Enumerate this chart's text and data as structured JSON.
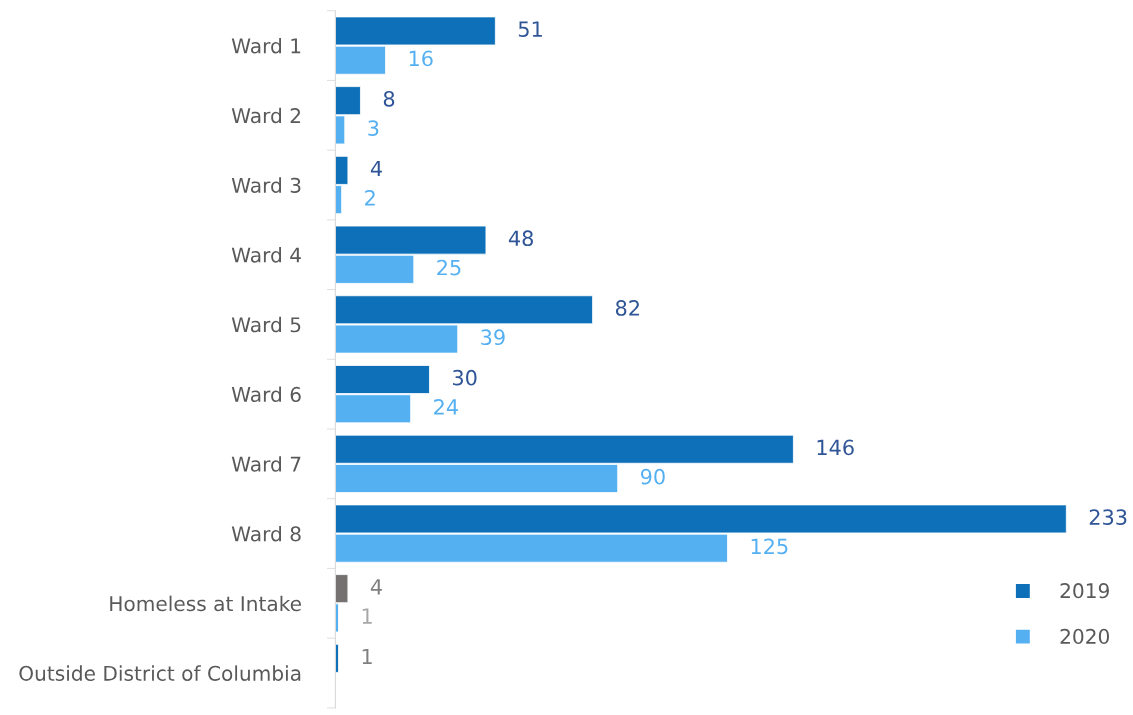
{
  "chart_data": {
    "type": "bar",
    "orientation": "horizontal",
    "data_labels": true,
    "legend": "bottom right",
    "grid": false,
    "categories": [
      "Ward 1",
      "Ward 2",
      "Ward 3",
      "Ward 4",
      "Ward 5",
      "Ward 6",
      "Ward 7",
      "Ward 8",
      "Homeless at Intake",
      "Outside District of Columbia"
    ],
    "series": [
      {
        "name": "2019",
        "color": "#0e70b9",
        "colors": [
          "#0e70b9",
          "#0e70b9",
          "#0e70b9",
          "#0e70b9",
          "#0e70b9",
          "#0e70b9",
          "#0e70b9",
          "#0e70b9",
          "#767171",
          "#0e70b9"
        ],
        "values": [
          51,
          8,
          4,
          48,
          82,
          30,
          146,
          233,
          4,
          1
        ]
      },
      {
        "name": "2020",
        "color": "#55b0f2",
        "colors": [
          "#55b0f2",
          "#55b0f2",
          "#55b0f2",
          "#55b0f2",
          "#55b0f2",
          "#55b0f2",
          "#55b0f2",
          "#55b0f2",
          "#55b0f2",
          "#55b0f2"
        ],
        "values": [
          16,
          3,
          2,
          25,
          39,
          24,
          90,
          125,
          1,
          null
        ]
      }
    ]
  }
}
